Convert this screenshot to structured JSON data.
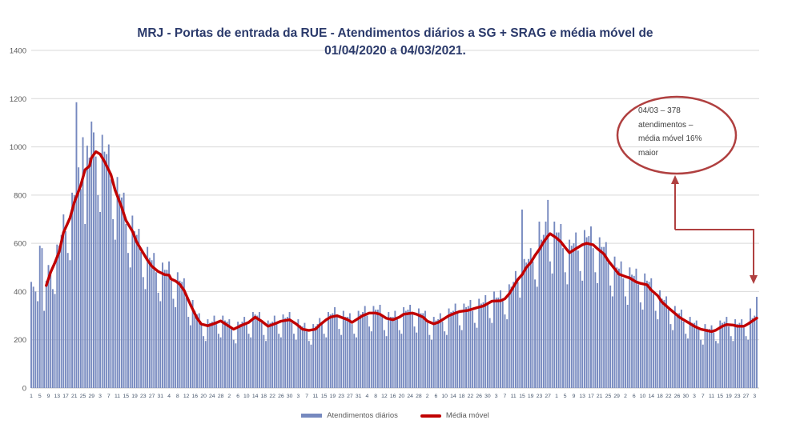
{
  "title": {
    "line1": "MRJ - Portas de entrada da RUE - Atendimentos diários a SG + SRAG e média móvel de",
    "line2": "01/04/2020 a 04/03/2021."
  },
  "colors": {
    "title": "#2b3a6b",
    "bars": "#7689bf",
    "ma_line": "#c00000",
    "grid": "#d9d9d9",
    "axis_baseline": "#c6c6c6",
    "y_axis_text": "#595959",
    "x_axis_text": "#44546a",
    "annotation_shape": "#b04040",
    "annotation_text": "#3f3f3f",
    "background": "#ffffff"
  },
  "annotation": {
    "lines": [
      "04/03 – 378",
      "atendimentos –",
      "média móvel 16%",
      "maior"
    ]
  },
  "chart_data": {
    "type": "bar+line",
    "title": "MRJ - Portas de entrada da RUE - Atendimentos diários a SG + SRAG e média móvel de 01/04/2020 a 04/03/2021.",
    "x_axis": {
      "unit": "dia (1 = 01/04/2020, 338 = 04/03/2021)",
      "num_points": 338,
      "tick_interval_days": 4,
      "tick_labels": [
        1,
        5,
        9,
        13,
        17,
        21,
        25,
        29,
        3,
        7,
        11,
        15,
        19,
        23,
        27,
        31,
        4,
        8,
        12,
        16,
        20,
        24,
        28,
        2,
        6,
        10,
        14,
        18,
        22,
        26,
        30,
        3,
        7,
        11,
        15,
        19,
        23,
        27,
        31,
        4,
        8,
        12,
        16,
        20,
        24,
        28,
        2,
        6,
        10,
        14,
        18,
        22,
        26,
        30,
        3,
        7,
        11,
        15,
        19,
        23,
        27,
        1,
        5,
        9,
        13,
        17,
        21,
        25,
        29,
        2,
        6,
        10,
        14,
        18,
        22,
        26,
        30,
        3,
        7,
        11,
        15,
        19,
        23,
        27,
        3
      ]
    },
    "ylim": [
      0,
      1400
    ],
    "y_ticks": [
      0,
      200,
      400,
      600,
      800,
      1000,
      1200,
      1400
    ],
    "grid": "horizontal",
    "legend_position": "bottom-center",
    "series": [
      {
        "name": "Atendimentos diários",
        "type": "bar",
        "values": [
          440,
          420,
          400,
          360,
          590,
          580,
          320,
          445,
          510,
          470,
          410,
          390,
          595,
          590,
          635,
          720,
          650,
          560,
          530,
          810,
          800,
          1185,
          915,
          825,
          1040,
          680,
          1005,
          955,
          1105,
          1060,
          960,
          800,
          730,
          1050,
          980,
          970,
          1010,
          865,
          700,
          615,
          875,
          805,
          790,
          810,
          680,
          560,
          500,
          715,
          650,
          635,
          660,
          565,
          460,
          410,
          585,
          540,
          530,
          560,
          480,
          395,
          360,
          520,
          490,
          490,
          525,
          445,
          370,
          335,
          480,
          445,
          440,
          455,
          375,
          295,
          260,
          365,
          320,
          305,
          310,
          260,
          215,
          195,
          285,
          270,
          275,
          300,
          265,
          225,
          210,
          300,
          280,
          275,
          285,
          245,
          200,
          185,
          275,
          265,
          275,
          295,
          265,
          225,
          210,
          315,
          305,
          300,
          315,
          270,
          220,
          195,
          280,
          270,
          275,
          300,
          265,
          225,
          210,
          305,
          290,
          295,
          315,
          270,
          225,
          200,
          285,
          260,
          255,
          270,
          235,
          195,
          180,
          265,
          255,
          265,
          290,
          265,
          225,
          210,
          315,
          305,
          310,
          335,
          295,
          245,
          220,
          320,
          295,
          295,
          310,
          265,
          225,
          210,
          320,
          305,
          315,
          340,
          300,
          255,
          235,
          340,
          325,
          325,
          345,
          295,
          240,
          215,
          315,
          295,
          295,
          320,
          285,
          240,
          225,
          335,
          320,
          325,
          345,
          305,
          255,
          230,
          330,
          310,
          310,
          320,
          270,
          220,
          200,
          295,
          280,
          285,
          310,
          275,
          235,
          220,
          330,
          315,
          320,
          350,
          310,
          260,
          240,
          350,
          335,
          340,
          365,
          320,
          270,
          250,
          370,
          350,
          355,
          385,
          345,
          290,
          270,
          400,
          375,
          375,
          405,
          360,
          305,
          285,
          430,
          420,
          440,
          485,
          440,
          375,
          740,
          535,
          520,
          535,
          580,
          525,
          450,
          420,
          690,
          615,
          635,
          690,
          780,
          525,
          475,
          690,
          645,
          645,
          680,
          580,
          480,
          430,
          615,
          590,
          600,
          645,
          570,
          485,
          445,
          655,
          625,
          630,
          670,
          580,
          480,
          435,
          625,
          585,
          585,
          605,
          520,
          425,
          380,
          545,
          500,
          495,
          525,
          455,
          380,
          345,
          500,
          470,
          465,
          495,
          430,
          355,
          325,
          475,
          445,
          440,
          455,
          390,
          320,
          285,
          405,
          370,
          365,
          380,
          325,
          265,
          240,
          340,
          310,
          310,
          325,
          275,
          225,
          205,
          295,
          270,
          270,
          280,
          245,
          200,
          180,
          265,
          245,
          245,
          260,
          230,
          195,
          185,
          280,
          270,
          275,
          295,
          255,
          215,
          195,
          285,
          265,
          270,
          285,
          250,
          215,
          200,
          330,
          290,
          300,
          378
        ]
      },
      {
        "name": "Média móvel",
        "type": "line",
        "keypoints": [
          [
            8,
            425
          ],
          [
            10,
            480
          ],
          [
            12,
            520
          ],
          [
            14,
            565
          ],
          [
            16,
            645
          ],
          [
            19,
            705
          ],
          [
            21,
            770
          ],
          [
            24,
            840
          ],
          [
            26,
            905
          ],
          [
            28,
            920
          ],
          [
            29,
            955
          ],
          [
            31,
            980
          ],
          [
            33,
            970
          ],
          [
            35,
            940
          ],
          [
            38,
            885
          ],
          [
            40,
            820
          ],
          [
            43,
            750
          ],
          [
            45,
            695
          ],
          [
            48,
            650
          ],
          [
            50,
            605
          ],
          [
            53,
            560
          ],
          [
            55,
            530
          ],
          [
            57,
            505
          ],
          [
            60,
            483
          ],
          [
            63,
            470
          ],
          [
            65,
            468
          ],
          [
            66,
            452
          ],
          [
            68,
            444
          ],
          [
            70,
            430
          ],
          [
            72,
            405
          ],
          [
            75,
            345
          ],
          [
            78,
            290
          ],
          [
            80,
            265
          ],
          [
            83,
            258
          ],
          [
            86,
            267
          ],
          [
            89,
            278
          ],
          [
            92,
            261
          ],
          [
            95,
            244
          ],
          [
            99,
            261
          ],
          [
            102,
            272
          ],
          [
            105,
            294
          ],
          [
            108,
            277
          ],
          [
            111,
            256
          ],
          [
            114,
            266
          ],
          [
            117,
            277
          ],
          [
            121,
            283
          ],
          [
            124,
            266
          ],
          [
            127,
            244
          ],
          [
            130,
            239
          ],
          [
            133,
            244
          ],
          [
            135,
            261
          ],
          [
            138,
            283
          ],
          [
            140,
            294
          ],
          [
            143,
            300
          ],
          [
            146,
            290
          ],
          [
            148,
            283
          ],
          [
            150,
            272
          ],
          [
            153,
            289
          ],
          [
            155,
            300
          ],
          [
            158,
            311
          ],
          [
            161,
            311
          ],
          [
            163,
            306
          ],
          [
            166,
            289
          ],
          [
            169,
            283
          ],
          [
            172,
            294
          ],
          [
            174,
            306
          ],
          [
            178,
            311
          ],
          [
            180,
            306
          ],
          [
            183,
            294
          ],
          [
            185,
            277
          ],
          [
            188,
            266
          ],
          [
            190,
            272
          ],
          [
            193,
            289
          ],
          [
            195,
            300
          ],
          [
            198,
            311
          ],
          [
            200,
            317
          ],
          [
            204,
            322
          ],
          [
            208,
            333
          ],
          [
            211,
            340
          ],
          [
            215,
            360
          ],
          [
            219,
            362
          ],
          [
            221,
            370
          ],
          [
            223,
            390
          ],
          [
            225,
            420
          ],
          [
            227,
            450
          ],
          [
            229,
            470
          ],
          [
            231,
            500
          ],
          [
            233,
            520
          ],
          [
            235,
            550
          ],
          [
            237,
            575
          ],
          [
            239,
            605
          ],
          [
            241,
            630
          ],
          [
            242,
            640
          ],
          [
            245,
            622
          ],
          [
            247,
            606
          ],
          [
            249,
            583
          ],
          [
            251,
            561
          ],
          [
            254,
            578
          ],
          [
            257,
            594
          ],
          [
            259,
            600
          ],
          [
            262,
            594
          ],
          [
            264,
            578
          ],
          [
            267,
            556
          ],
          [
            269,
            528
          ],
          [
            272,
            494
          ],
          [
            274,
            472
          ],
          [
            277,
            462
          ],
          [
            279,
            456
          ],
          [
            282,
            440
          ],
          [
            284,
            434
          ],
          [
            287,
            428
          ],
          [
            289,
            406
          ],
          [
            292,
            383
          ],
          [
            294,
            356
          ],
          [
            297,
            332
          ],
          [
            299,
            317
          ],
          [
            302,
            294
          ],
          [
            304,
            283
          ],
          [
            307,
            267
          ],
          [
            309,
            256
          ],
          [
            312,
            244
          ],
          [
            314,
            240
          ],
          [
            317,
            234
          ],
          [
            319,
            240
          ],
          [
            322,
            256
          ],
          [
            324,
            263
          ],
          [
            327,
            261
          ],
          [
            329,
            256
          ],
          [
            332,
            256
          ],
          [
            334,
            266
          ],
          [
            336,
            278
          ],
          [
            338,
            290
          ]
        ]
      }
    ],
    "annotation": {
      "text": "04/03 – 378 atendimentos – média móvel 16% maior",
      "points_to": "última barra (04/03/2021, 378 atendimentos)"
    }
  }
}
